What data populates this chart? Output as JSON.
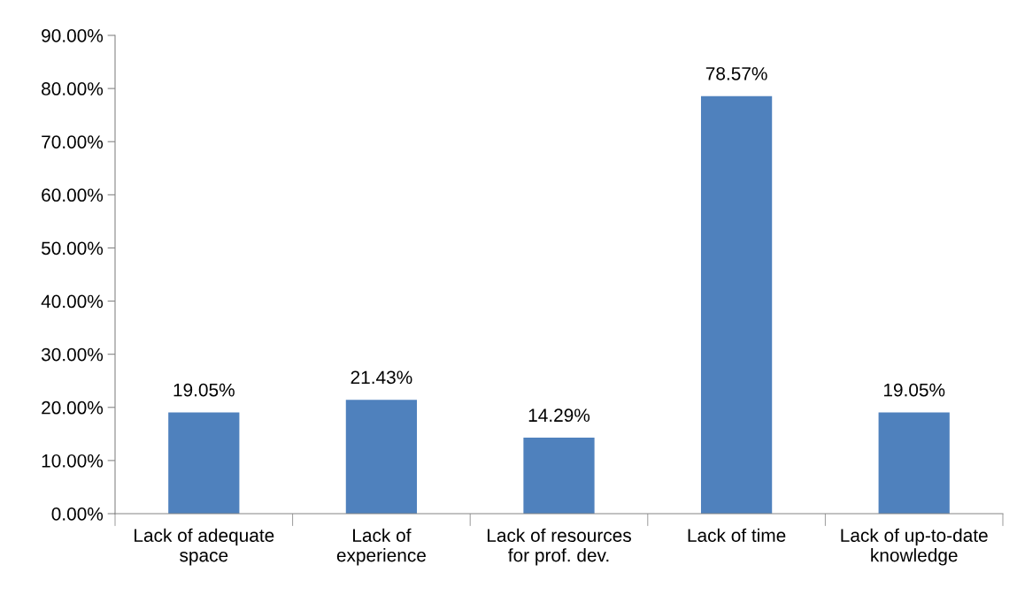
{
  "chart_data": {
    "type": "bar",
    "categories": [
      "Lack of adequate\nspace",
      "Lack of\nexperience",
      "Lack of resources\nfor prof. dev.",
      "Lack of time",
      "Lack of up-to-date\nknowledge"
    ],
    "values": [
      19.05,
      21.43,
      14.29,
      78.57,
      19.05
    ],
    "value_labels": [
      "19.05%",
      "21.43%",
      "14.29%",
      "78.57%",
      "19.05%"
    ],
    "color": "#4f81bd",
    "ylim": [
      0,
      90
    ],
    "yticks": [
      {
        "value": 0,
        "label": "0.00%"
      },
      {
        "value": 10,
        "label": "10.00%"
      },
      {
        "value": 20,
        "label": "20.00%"
      },
      {
        "value": 30,
        "label": "30.00%"
      },
      {
        "value": 40,
        "label": "40.00%"
      },
      {
        "value": 50,
        "label": "50.00%"
      },
      {
        "value": 60,
        "label": "60.00%"
      },
      {
        "value": 70,
        "label": "70.00%"
      },
      {
        "value": 80,
        "label": "80.00%"
      },
      {
        "value": 90,
        "label": "90.00%"
      }
    ],
    "grid": false,
    "legend": false
  }
}
